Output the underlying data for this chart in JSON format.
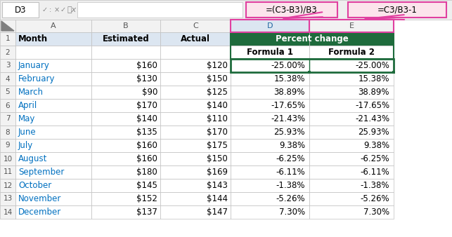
{
  "formula_bar_cell": "D3",
  "formula1_bar": "=(C3-B3)/B3",
  "formula2_bar": "=C3/B3-1",
  "months": [
    "January",
    "February",
    "March",
    "April",
    "May",
    "June",
    "July",
    "August",
    "September",
    "October",
    "November",
    "December"
  ],
  "estimated": [
    "$160",
    "$130",
    "$90",
    "$170",
    "$140",
    "$135",
    "$160",
    "$160",
    "$180",
    "$145",
    "$152",
    "$137"
  ],
  "actual": [
    "$120",
    "$150",
    "$125",
    "$140",
    "$110",
    "$170",
    "$175",
    "$150",
    "$169",
    "$143",
    "$144",
    "$147"
  ],
  "formula1": [
    "-25.00%",
    "15.38%",
    "38.89%",
    "-17.65%",
    "-21.43%",
    "25.93%",
    "9.38%",
    "-6.25%",
    "-6.11%",
    "-1.38%",
    "-5.26%",
    "7.30%"
  ],
  "formula2": [
    "-25.00%",
    "15.38%",
    "38.89%",
    "-17.65%",
    "-21.43%",
    "25.93%",
    "9.38%",
    "-6.25%",
    "-6.11%",
    "-1.38%",
    "-5.26%",
    "7.30%"
  ],
  "bg_color": "#ffffff",
  "header_bg_abc": "#dce6f1",
  "header_bg_de": "#1e6b3c",
  "header_text_de": "#ffffff",
  "formula_bar_bg": "#efefef",
  "grid_color": "#c0c0c0",
  "row_header_bg": "#f2f2f2",
  "col_header_normal_bg": "#f2f2f2",
  "col_d_header_bg": "#dce6f1",
  "col_d_header_text": "#2166a0",
  "pink_border": "#e040a0",
  "pink_fill": "#fce4ec",
  "green_border": "#1e6b3c",
  "month_color": "#0070c0",
  "figsize": [
    6.43,
    3.38
  ],
  "dpi": 100
}
